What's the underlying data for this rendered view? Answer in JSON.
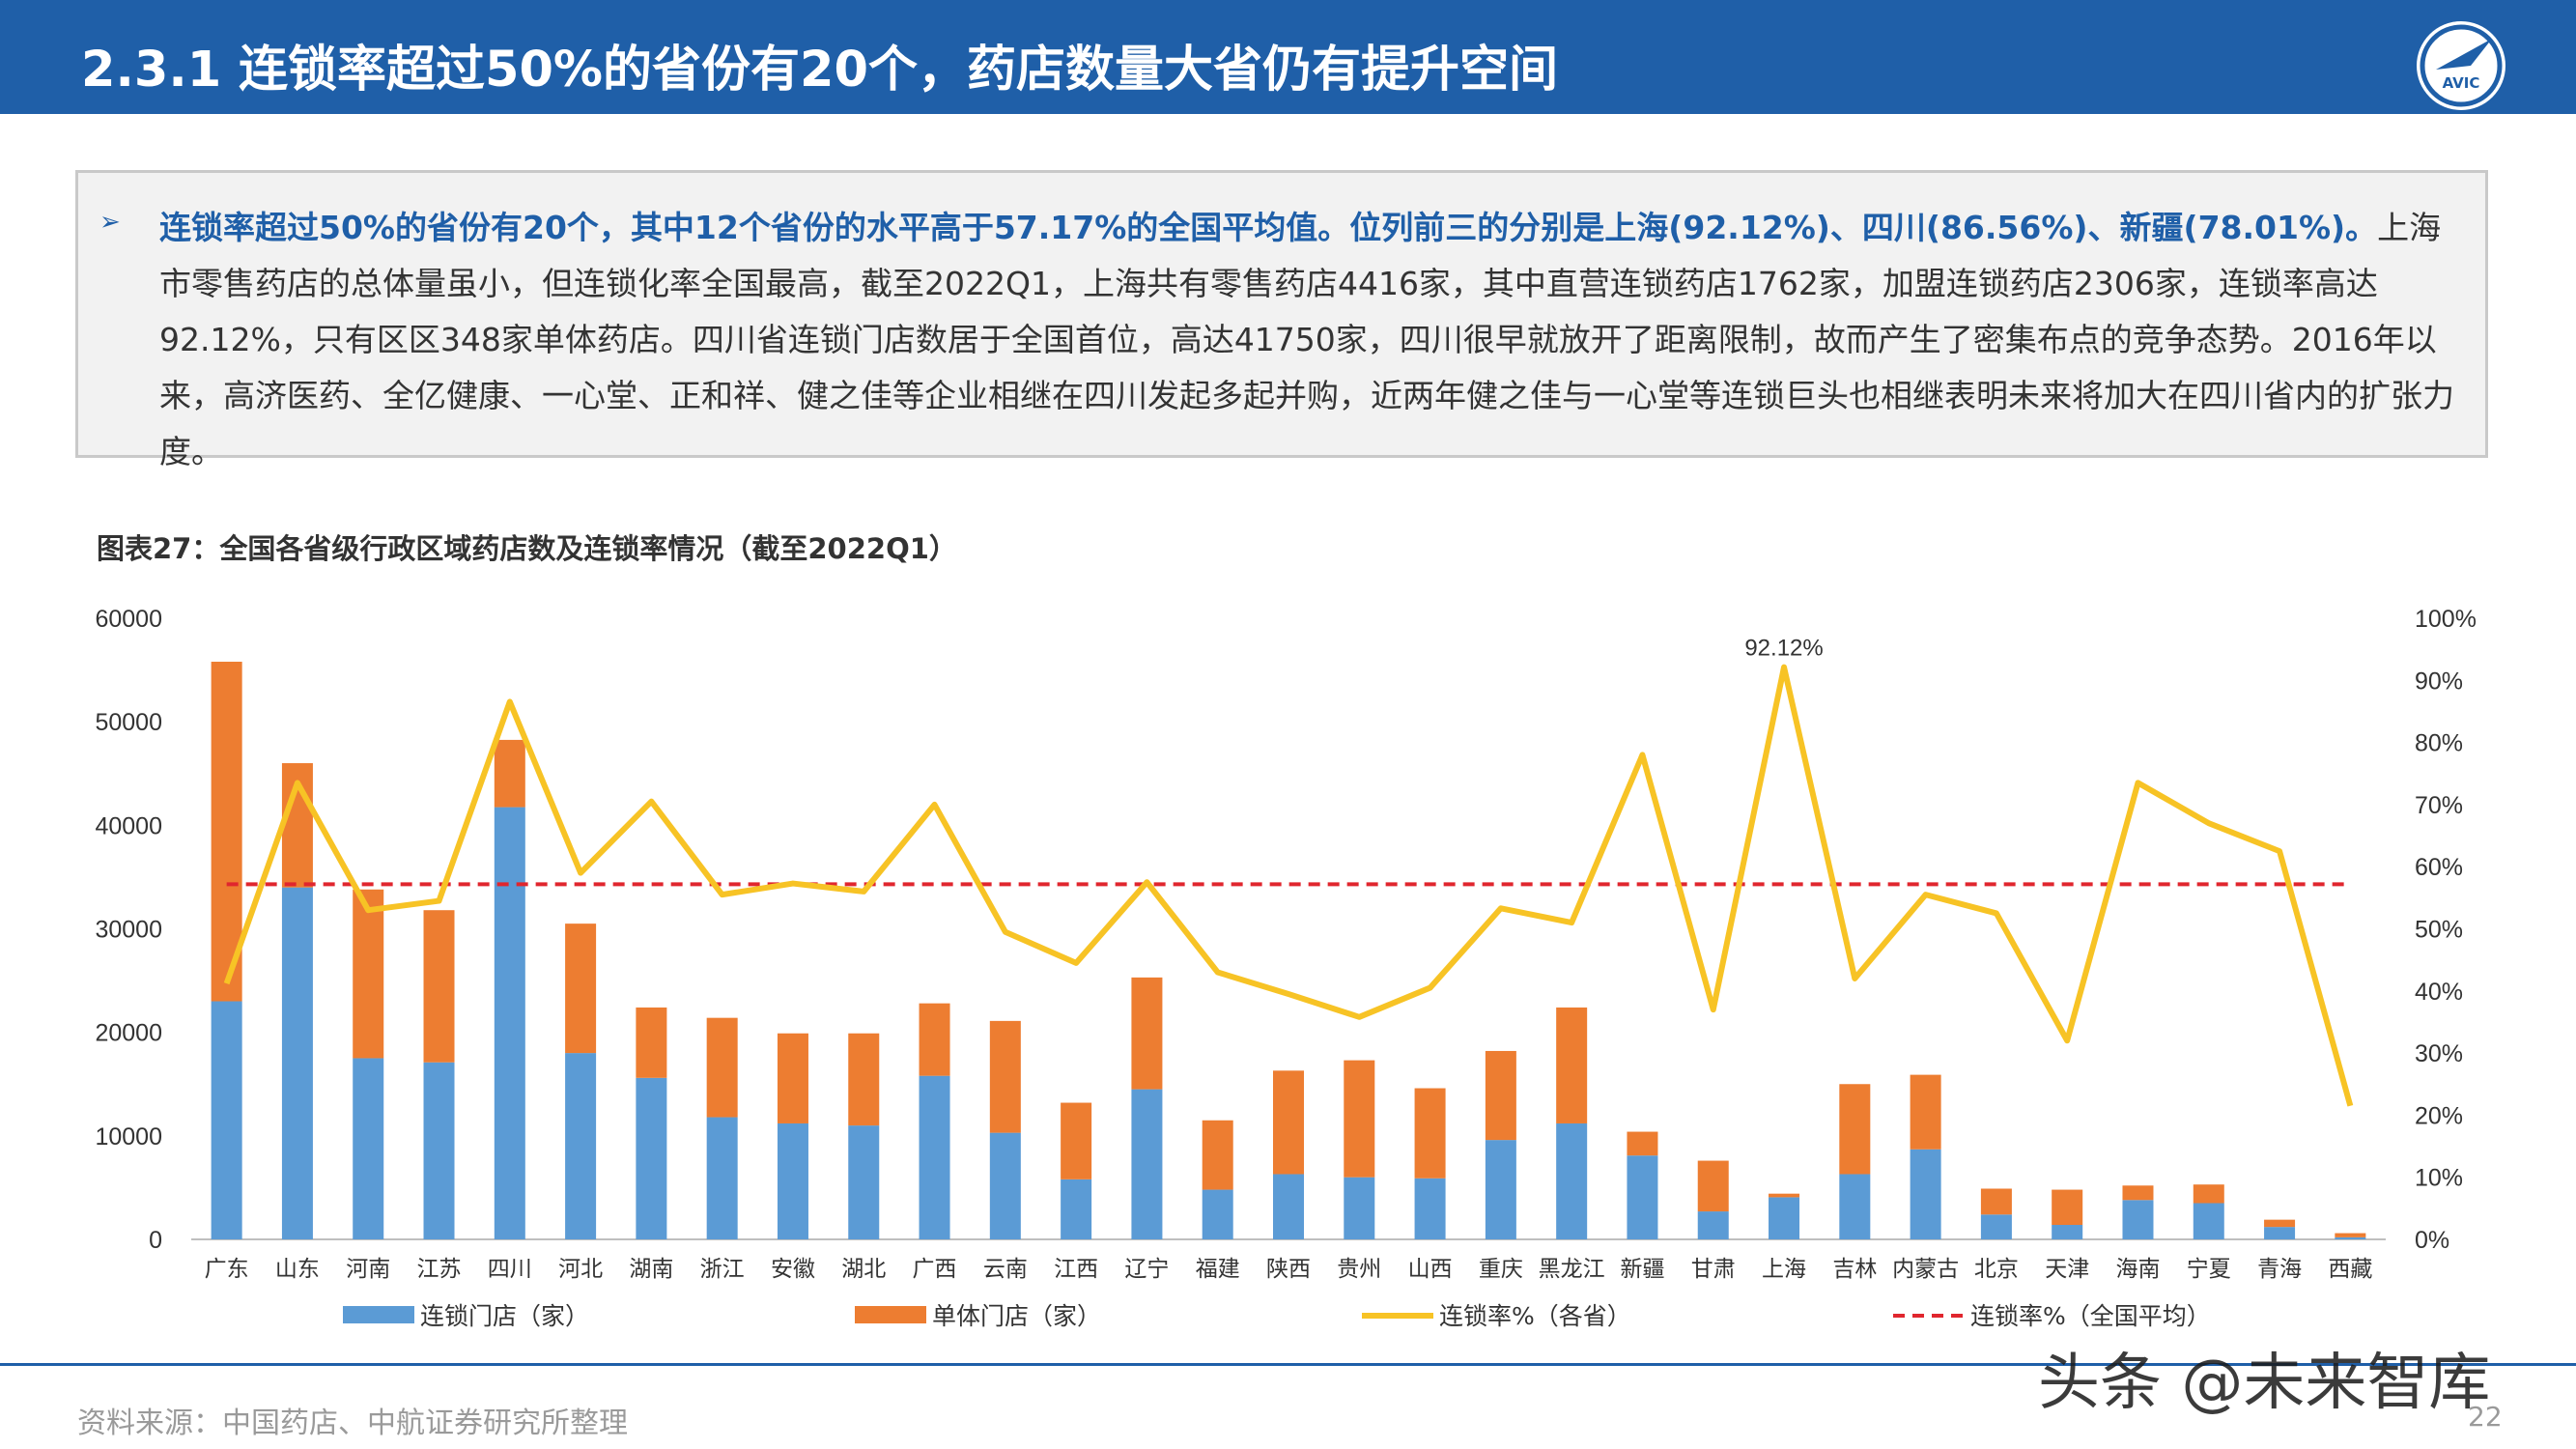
{
  "header": {
    "title": "2.3.1 连锁率超过50%的省份有20个，药店数量大省仍有提升空间",
    "logo_text": "AVIC"
  },
  "summary": {
    "bullet": "➢",
    "highlight": "连锁率超过50%的省份有20个，其中12个省份的水平高于57.17%的全国平均值。位列前三的分别是上海(92.12%)、四川(86.56%)、新疆(78.01%)。",
    "body": "上海市零售药店的总体量虽小，但连锁化率全国最高，截至2022Q1，上海共有零售药店4416家，其中直营连锁药店1762家，加盟连锁药店2306家，连锁率高达92.12%，只有区区348家单体药店。四川省连锁门店数居于全国首位，高达41750家，四川很早就放开了距离限制，故而产生了密集布点的竞争态势。2016年以来，高济医药、全亿健康、一心堂、正和祥、健之佳等企业相继在四川发起多起并购，近两年健之佳与一心堂等连锁巨头也相继表明未来将加大在四川省内的扩张力度。"
  },
  "chart_title": "图表27：全国各省级行政区域药店数及连锁率情况（截至2022Q1）",
  "chart_data": {
    "type": "bar",
    "categories": [
      "广东",
      "山东",
      "河南",
      "江苏",
      "四川",
      "河北",
      "湖南",
      "浙江",
      "安徽",
      "湖北",
      "广西",
      "云南",
      "江西",
      "辽宁",
      "福建",
      "陕西",
      "贵州",
      "山西",
      "重庆",
      "黑龙江",
      "新疆",
      "甘肃",
      "上海",
      "吉林",
      "内蒙古",
      "北京",
      "天津",
      "海南",
      "宁夏",
      "青海",
      "西藏"
    ],
    "series": [
      {
        "name": "连锁门店（家）",
        "kind": "stacked-bar",
        "color": "#5b9bd5",
        "values": [
          23000,
          34000,
          17500,
          17100,
          41750,
          18000,
          15600,
          11800,
          11200,
          11000,
          15800,
          10300,
          5800,
          14500,
          4800,
          6300,
          6000,
          5900,
          9600,
          11200,
          8100,
          2700,
          4068,
          6300,
          8700,
          2400,
          1400,
          3800,
          3500,
          1200,
          200
        ]
      },
      {
        "name": "单体门店（家）",
        "kind": "stacked-bar",
        "color": "#ed7d31",
        "values": [
          32800,
          12000,
          16300,
          14700,
          6500,
          12500,
          6800,
          9600,
          8700,
          8900,
          7000,
          10800,
          7400,
          10800,
          6700,
          10000,
          11300,
          8700,
          8600,
          11200,
          2300,
          4900,
          348,
          8700,
          7200,
          2500,
          3400,
          1400,
          1800,
          700,
          400
        ]
      },
      {
        "name": "连锁率%（各省）",
        "kind": "line",
        "color": "#f7c325",
        "values": [
          41.2,
          73.5,
          53,
          54.5,
          86.56,
          59,
          70.5,
          55.5,
          57.3,
          56,
          70,
          49.5,
          44.5,
          57.5,
          43,
          39.5,
          35.8,
          40.5,
          53.3,
          51,
          78.01,
          37,
          92.12,
          42,
          55.5,
          52.5,
          32,
          73.5,
          67,
          62.5,
          21.5
        ]
      },
      {
        "name": "连锁率%（全国平均）",
        "kind": "dashed-line",
        "color": "#e0262e",
        "value": 57.17
      }
    ],
    "y_left": {
      "min": 0,
      "max": 60000,
      "ticks": [
        "0",
        "10000",
        "20000",
        "30000",
        "40000",
        "50000",
        "60000"
      ]
    },
    "y_right": {
      "min": 0,
      "max": 100,
      "ticks": [
        "0%",
        "10%",
        "20%",
        "30%",
        "40%",
        "50%",
        "60%",
        "70%",
        "80%",
        "90%",
        "100%"
      ]
    },
    "annotation": {
      "category": "上海",
      "text": "92.12%"
    },
    "legend_position": "bottom"
  },
  "footer": {
    "source": "资料来源：中国药店、中航证券研究所整理",
    "page": "22",
    "watermark": "头条 @未来智库"
  }
}
